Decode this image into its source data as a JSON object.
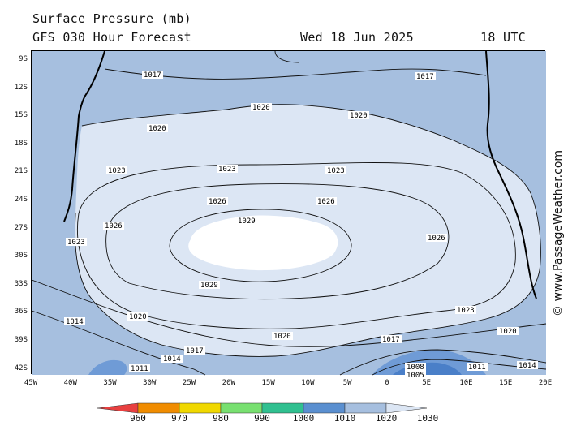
{
  "header": {
    "title": "Surface Pressure (mb)",
    "model": "GFS 030 Hour Forecast",
    "date": "Wed 18 Jun 2025",
    "time": "18 UTC"
  },
  "axes": {
    "latitudes": [
      "9S",
      "12S",
      "15S",
      "18S",
      "21S",
      "24S",
      "27S",
      "30S",
      "33S",
      "36S",
      "39S",
      "42S"
    ],
    "longitudes": [
      "45W",
      "40W",
      "35W",
      "30W",
      "25W",
      "20W",
      "15W",
      "10W",
      "5W",
      "0",
      "5E",
      "10E",
      "15E",
      "20E"
    ]
  },
  "legend": {
    "values": [
      "960",
      "970",
      "980",
      "990",
      "1000",
      "1010",
      "1020",
      "1030"
    ],
    "colors": [
      "#e84040",
      "#f08c00",
      "#f0d800",
      "#78e070",
      "#30c090",
      "#5a8fd0",
      "#a6bfdf",
      "#dce6f4"
    ]
  },
  "isobar_labels": {
    "l1014": "1014",
    "l1017": "1017",
    "l1020": "1020",
    "l1023": "1023",
    "l1026": "1026",
    "l1029": "1029",
    "l1011": "1011",
    "l1008": "1008",
    "l1005": "1005"
  },
  "credit": "© www.PassageWeather.com"
}
